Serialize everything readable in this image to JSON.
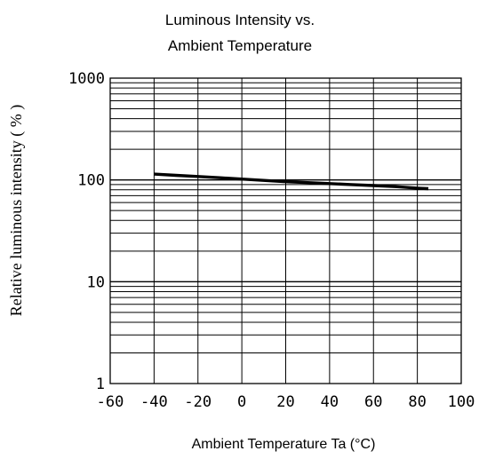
{
  "chart_data": {
    "type": "line",
    "title_lines": [
      "Luminous Intensity vs.",
      "Ambient Temperature"
    ],
    "xlabel": "Ambient Temperature Ta (°C)",
    "ylabel": "Relative luminous intensity ( % )",
    "xlim": [
      -60,
      100
    ],
    "ylim": [
      1,
      1000
    ],
    "y_scale": "log",
    "x_ticks": [
      -60,
      -40,
      -20,
      0,
      20,
      40,
      60,
      80,
      100
    ],
    "x_tick_labels": [
      "-60",
      "-40",
      "-20",
      "0",
      "20",
      "40",
      "60",
      "80",
      "100"
    ],
    "y_ticks": [
      1,
      10,
      100,
      1000
    ],
    "y_tick_labels": [
      "1",
      "10",
      "100",
      "1000"
    ],
    "grid": true,
    "series": [
      {
        "x": [
          -40,
          -30,
          -20,
          -10,
          0,
          10,
          20,
          30,
          40,
          50,
          60,
          70,
          80,
          85
        ],
        "y": [
          114,
          111,
          108,
          105,
          102,
          99,
          96,
          94,
          92,
          90,
          88,
          86,
          83,
          82
        ]
      }
    ],
    "colors": {
      "line": "#000000",
      "grid": "#000000",
      "background": "#ffffff"
    }
  }
}
